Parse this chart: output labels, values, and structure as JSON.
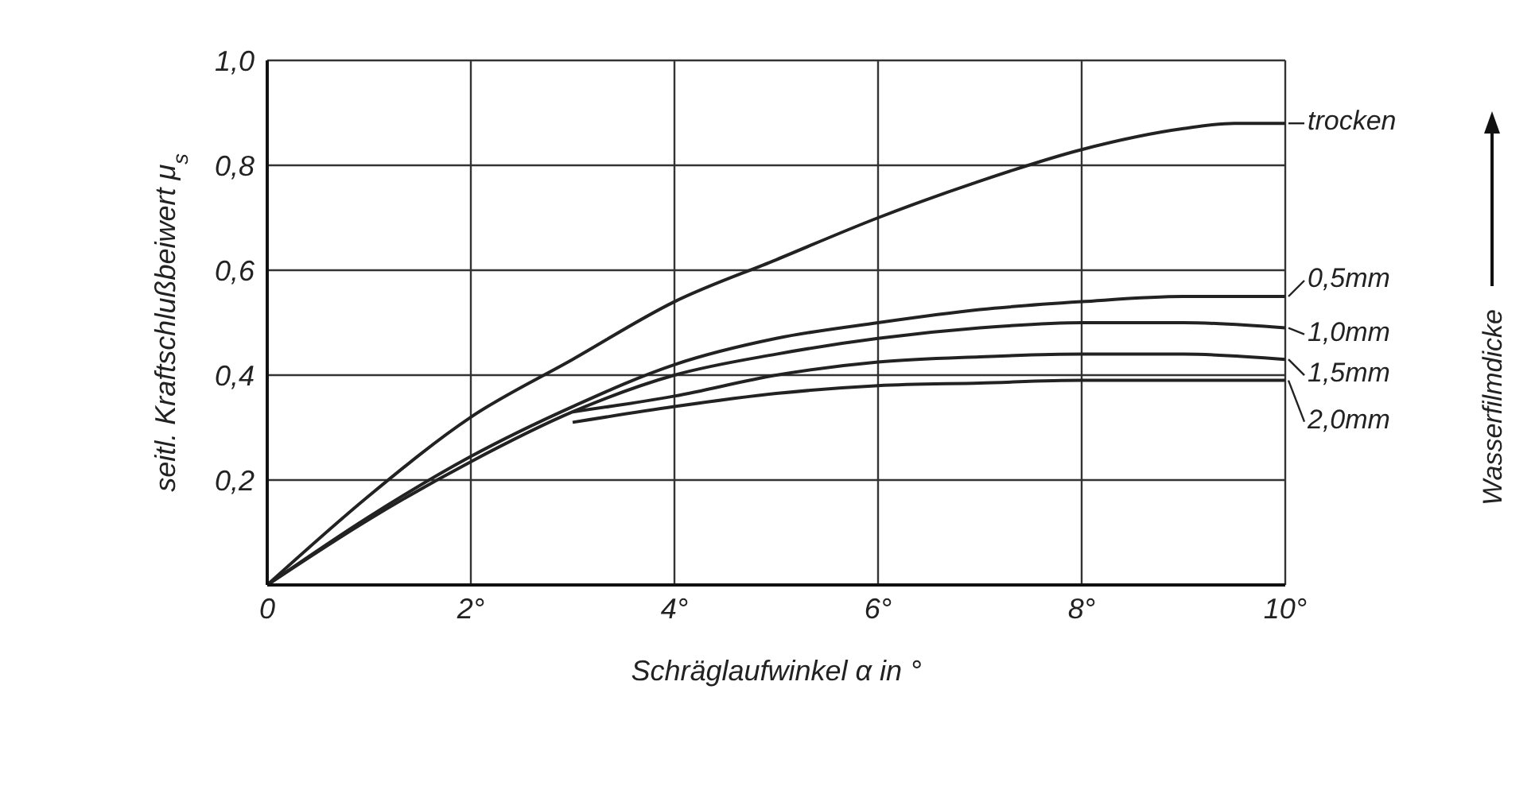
{
  "chart_data": {
    "type": "line",
    "xlabel": "Schräglaufwinkel α in °",
    "ylabel": "seitl. Kraftschlußbeiwert μ$_{s}$",
    "xlim": [
      0,
      10
    ],
    "ylim": [
      0,
      1
    ],
    "xticks": [
      {
        "value": 0,
        "label": "0"
      },
      {
        "value": 2,
        "label": "2°"
      },
      {
        "value": 4,
        "label": "4°"
      },
      {
        "value": 6,
        "label": "6°"
      },
      {
        "value": 8,
        "label": "8°"
      },
      {
        "value": 10,
        "label": "10°"
      }
    ],
    "yticks": [
      {
        "value": 0,
        "label": null
      },
      {
        "value": 0.2,
        "label": "0,2"
      },
      {
        "value": 0.4,
        "label": "0,4"
      },
      {
        "value": 0.6,
        "label": "0,6"
      },
      {
        "value": 0.8,
        "label": "0,8"
      },
      {
        "value": 1,
        "label": "1,0"
      }
    ],
    "grid": true,
    "legend": "right",
    "marker": "none",
    "line_style": "solid",
    "series": [
      {
        "name": "trocken",
        "color": "#222222",
        "x": [
          0,
          1,
          2,
          3,
          4,
          5,
          6,
          7,
          8,
          9,
          9.5,
          10
        ],
        "values": [
          0,
          0.17,
          0.32,
          0.43,
          0.54,
          0.62,
          0.7,
          0.77,
          0.83,
          0.87,
          0.88,
          0.88
        ]
      },
      {
        "name": "0,5mm",
        "color": "#222222",
        "x": [
          0,
          1,
          2,
          3,
          4,
          5,
          6,
          7,
          8,
          9,
          10
        ],
        "values": [
          0,
          0.13,
          0.245,
          0.34,
          0.42,
          0.47,
          0.5,
          0.525,
          0.54,
          0.55,
          0.55
        ]
      },
      {
        "name": "1,0mm",
        "color": "#222222",
        "x": [
          0,
          1,
          2,
          3,
          4,
          5,
          6,
          7,
          8,
          9,
          10
        ],
        "values": [
          0,
          0.125,
          0.235,
          0.33,
          0.4,
          0.44,
          0.47,
          0.49,
          0.5,
          0.5,
          0.49
        ]
      },
      {
        "name": "1,5mm",
        "color": "#222222",
        "x": [
          3,
          4,
          5,
          6,
          7,
          8,
          9,
          10
        ],
        "values": [
          0.33,
          0.36,
          0.4,
          0.425,
          0.435,
          0.44,
          0.44,
          0.43
        ]
      },
      {
        "name": "2,0mm",
        "color": "#222222",
        "x": [
          3,
          4,
          5,
          6,
          7,
          8,
          9,
          10
        ],
        "values": [
          0.31,
          0.34,
          0.365,
          0.38,
          0.385,
          0.39,
          0.39,
          0.39
        ]
      }
    ],
    "annotations": [
      "Wasserfilmdicke"
    ]
  }
}
